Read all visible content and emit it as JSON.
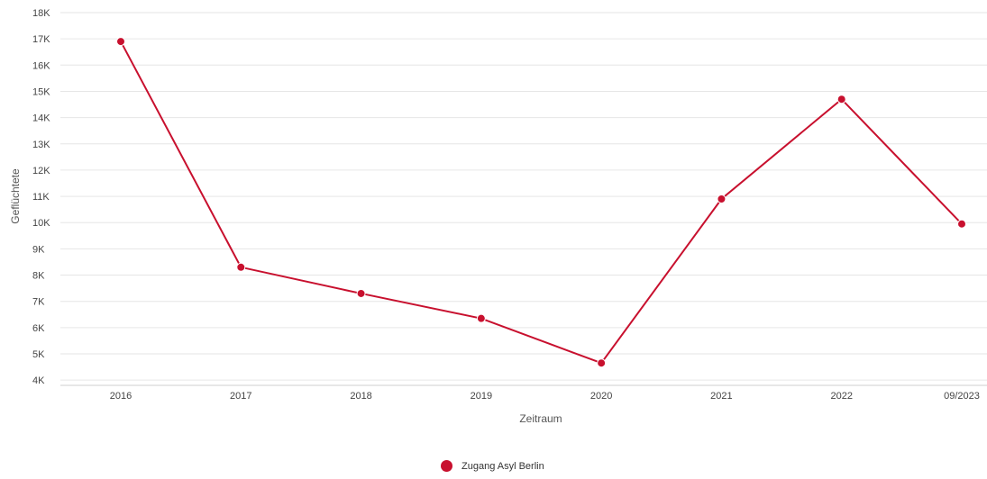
{
  "chart_data": {
    "type": "line",
    "title": "",
    "xlabel": "Zeitraum",
    "ylabel": "Geflüchtete",
    "categories": [
      "2016",
      "2017",
      "2018",
      "2019",
      "2020",
      "2021",
      "2022",
      "09/2023"
    ],
    "y_ticks": [
      "4K",
      "5K",
      "6K",
      "7K",
      "8K",
      "9K",
      "10K",
      "11K",
      "12K",
      "13K",
      "14K",
      "15K",
      "16K",
      "17K",
      "18K"
    ],
    "ylim": [
      3800,
      18000
    ],
    "grid": true,
    "legend_position": "bottom-center",
    "series": [
      {
        "name": "Zugang Asyl Berlin",
        "color": "#c8102e",
        "values": [
          16900,
          8300,
          7300,
          6350,
          4650,
          10900,
          14700,
          9950
        ]
      }
    ]
  }
}
